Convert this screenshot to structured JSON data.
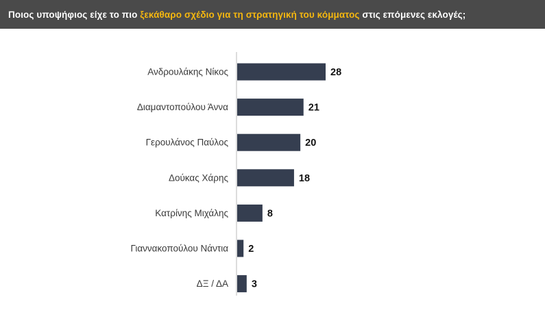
{
  "title": {
    "part1": "Ποιος υποψήφιος είχε το πιο ",
    "highlight": "ξεκάθαρο σχέδιο για τη στρατηγική του κόμματος",
    "part2": " στις επόμενες εκλογές;"
  },
  "colors": {
    "title_background": "#4a4a4a",
    "title_text": "#ffffff",
    "title_highlight": "#f5b70f",
    "bar": "#353e50",
    "axis": "#b8b8b8"
  },
  "chart_data": {
    "type": "bar",
    "orientation": "horizontal",
    "categories": [
      "Ανδρουλάκης Νίκος",
      "Διαμαντοπούλου Άννα",
      "Γερουλάνος Παύλος",
      "Δούκας Χάρης",
      "Κατρίνης Μιχάλης",
      "Γιαννακοπούλου Νάντια",
      "ΔΞ / ΔΑ"
    ],
    "values": [
      28,
      21,
      20,
      18,
      8,
      2,
      3
    ],
    "value_labels": [
      "28",
      "21",
      "20",
      "18",
      "8",
      "2",
      "3"
    ],
    "xlim": [
      0,
      28
    ],
    "grid": false,
    "legend": "none"
  }
}
